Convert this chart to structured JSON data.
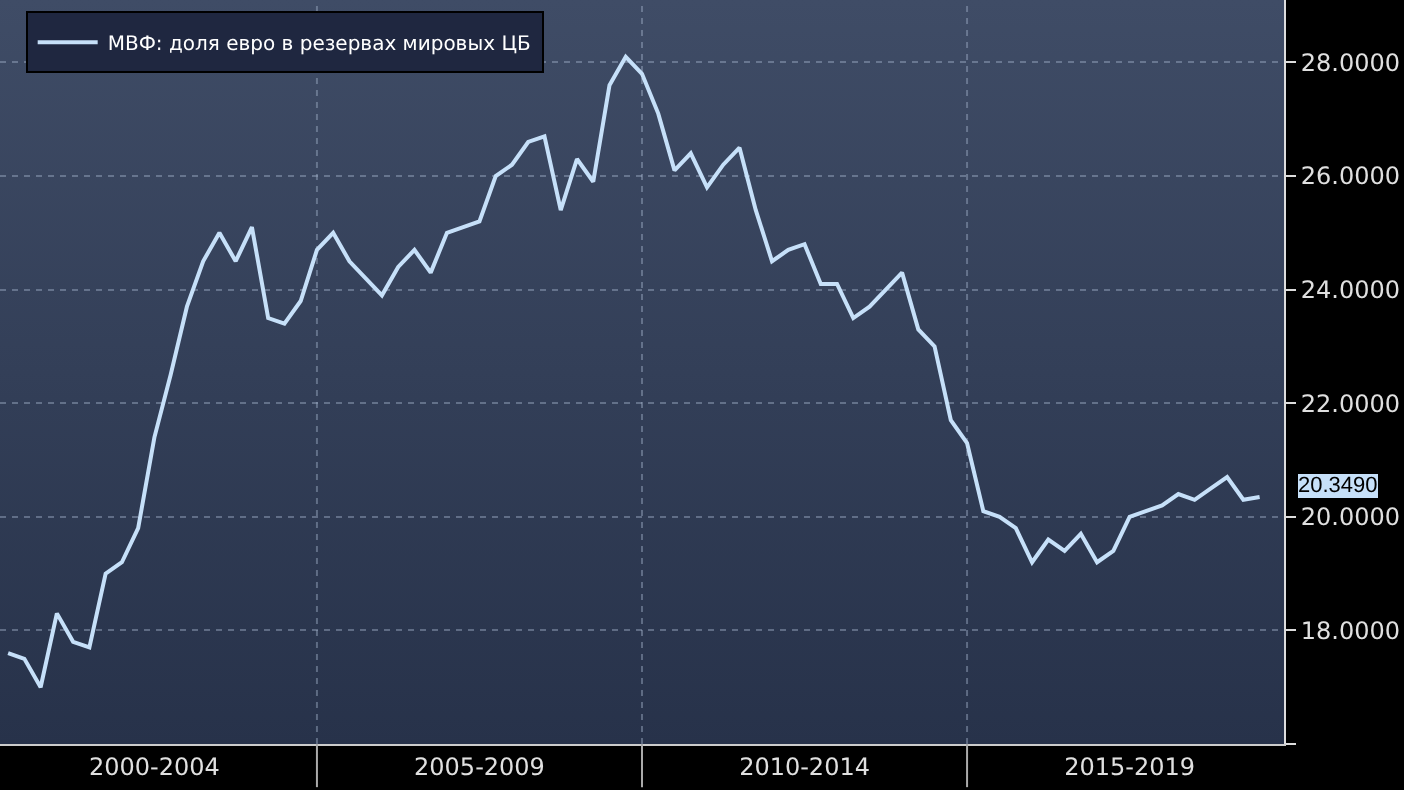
{
  "chart_data": {
    "type": "line",
    "categories": [
      null,
      null,
      null,
      null,
      null,
      null,
      null,
      null,
      null,
      "2000-2004",
      null,
      null,
      null,
      null,
      null,
      null,
      null,
      null,
      null,
      null,
      null,
      null,
      null,
      null,
      null,
      null,
      null,
      null,
      null,
      "2005-2009",
      null,
      null,
      null,
      null,
      null,
      null,
      null,
      null,
      null,
      null,
      null,
      null,
      null,
      null,
      null,
      null,
      null,
      null,
      null,
      "2010-2014",
      null,
      null,
      null,
      null,
      null,
      null,
      null,
      null,
      null,
      null,
      null,
      null,
      null,
      null,
      null,
      null,
      null,
      null,
      null,
      "2015-2019",
      null,
      null,
      null,
      null,
      null,
      null,
      null,
      null
    ],
    "series": [
      {
        "name": "МВФ: доля евро в резервах мировых ЦБ",
        "color": "#c6e0f9",
        "values": [
          17.6,
          17.5,
          17.0,
          18.3,
          17.8,
          17.7,
          19.0,
          19.2,
          19.8,
          21.4,
          22.5,
          23.7,
          24.5,
          25.0,
          24.5,
          25.1,
          23.5,
          23.4,
          23.8,
          24.7,
          25.0,
          24.5,
          24.2,
          23.9,
          24.4,
          24.7,
          24.3,
          25.0,
          25.1,
          25.2,
          26.0,
          26.2,
          26.6,
          26.7,
          25.4,
          26.3,
          25.9,
          27.6,
          28.1,
          27.8,
          27.1,
          26.1,
          26.4,
          25.8,
          26.2,
          26.5,
          25.4,
          24.5,
          24.7,
          24.8,
          24.1,
          24.1,
          23.5,
          23.7,
          24.0,
          24.3,
          23.3,
          23.0,
          21.7,
          21.3,
          20.1,
          20.0,
          19.8,
          19.2,
          19.6,
          19.4,
          19.7,
          19.2,
          19.4,
          20.0,
          20.1,
          20.2,
          20.4,
          20.3,
          20.5,
          20.7,
          20.3,
          20.349
        ],
        "value_labels": [
          null,
          null,
          null,
          null,
          null,
          null,
          null,
          null,
          null,
          null,
          null,
          null,
          null,
          null,
          null,
          null,
          null,
          null,
          null,
          null,
          null,
          null,
          null,
          null,
          null,
          null,
          null,
          null,
          null,
          null,
          null,
          null,
          null,
          null,
          null,
          null,
          null,
          null,
          null,
          null,
          null,
          null,
          null,
          null,
          null,
          null,
          null,
          null,
          null,
          null,
          null,
          null,
          null,
          null,
          null,
          null,
          null,
          null,
          null,
          null,
          null,
          null,
          null,
          null,
          null,
          null,
          null,
          null,
          null,
          null,
          null,
          null,
          null,
          null,
          null,
          null,
          null,
          "20.3490"
        ]
      }
    ],
    "ylim": [
      16,
      29.1
    ],
    "yticks": [
      {
        "value": 16,
        "label": null
      },
      {
        "value": 18,
        "label": "18.0000"
      },
      {
        "value": 20,
        "label": "20.0000"
      },
      {
        "value": 22,
        "label": "22.0000"
      },
      {
        "value": 24,
        "label": "24.0000"
      },
      {
        "value": 26,
        "label": "26.0000"
      },
      {
        "value": 28,
        "label": "28.0000"
      }
    ],
    "grid": true,
    "legend": "top left"
  }
}
